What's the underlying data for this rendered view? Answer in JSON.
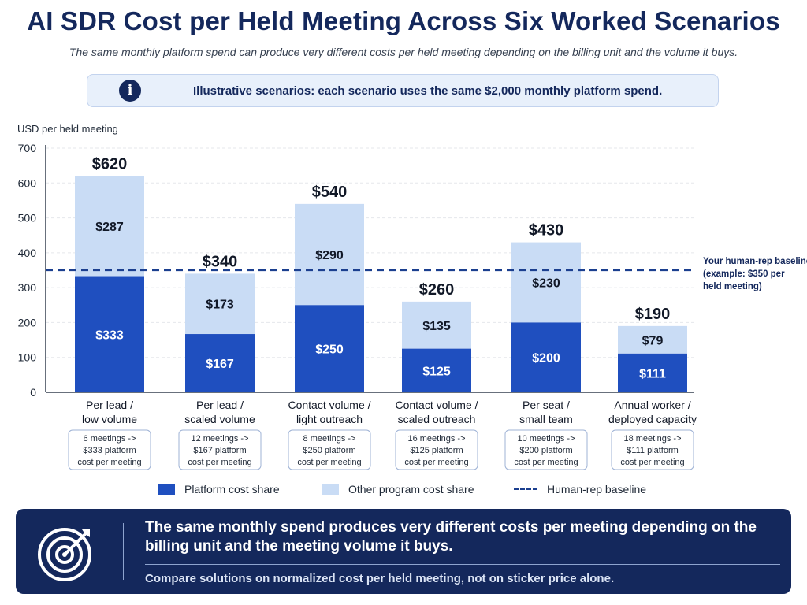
{
  "header": {
    "title": "AI SDR Cost per Held Meeting Across Six Worked Scenarios",
    "subtitle": "The same monthly platform spend can produce very different costs per held meeting depending on the billing unit and the volume it buys."
  },
  "notice": {
    "icon": "info-icon",
    "text": "Illustrative scenarios: each scenario uses the same $2,000 monthly platform spend."
  },
  "chart_data": {
    "type": "bar",
    "stacked": true,
    "ylabel": "USD per held meeting",
    "ylim": [
      0,
      700
    ],
    "yticks": [
      0,
      100,
      200,
      300,
      400,
      500,
      600,
      700
    ],
    "grid": true,
    "categories": [
      [
        "Per lead /",
        "low volume"
      ],
      [
        "Per lead /",
        "scaled volume"
      ],
      [
        "Contact volume /",
        "light outreach"
      ],
      [
        "Contact volume /",
        "scaled outreach"
      ],
      [
        "Per seat /",
        "small team"
      ],
      [
        "Annual worker /",
        "deployed capacity"
      ]
    ],
    "series": [
      {
        "name": "Platform cost share",
        "values": [
          333,
          167,
          250,
          125,
          200,
          111
        ],
        "labels": [
          "$333",
          "$167",
          "$250",
          "$125",
          "$200",
          "$111"
        ],
        "color": "#1f4fbf"
      },
      {
        "name": "Other program cost share",
        "values": [
          287,
          173,
          290,
          135,
          230,
          79
        ],
        "labels": [
          "$287",
          "$173",
          "$290",
          "$135",
          "$230",
          "$79"
        ],
        "color": "#c9dcf5"
      }
    ],
    "totals": [
      620,
      340,
      540,
      260,
      430,
      190
    ],
    "total_labels": [
      "$620",
      "$340",
      "$540",
      "$260",
      "$430",
      "$190"
    ],
    "notes": [
      [
        "6 meetings ->",
        "$333 platform",
        "cost per meeting"
      ],
      [
        "12 meetings ->",
        "$167 platform",
        "cost per meeting"
      ],
      [
        "8 meetings ->",
        "$250 platform",
        "cost per meeting"
      ],
      [
        "16 meetings ->",
        "$125 platform",
        "cost per meeting"
      ],
      [
        "10 meetings ->",
        "$200 platform",
        "cost per meeting"
      ],
      [
        "18 meetings ->",
        "$111 platform",
        "cost per meeting"
      ]
    ],
    "baseline": {
      "value": 350,
      "name": "Human-rep baseline",
      "label": [
        "Your human-rep baseline",
        "(example: $350 per",
        "held meeting)"
      ],
      "color": "#1b3f8f"
    },
    "legend_position": "bottom"
  },
  "legend": {
    "platform": "Platform cost share",
    "other": "Other program cost share",
    "baseline": "Human-rep baseline"
  },
  "banner": {
    "icon": "target-icon",
    "headline": "The same monthly spend produces very different costs per meeting depending on the billing unit and the meeting volume it buys.",
    "note": "Compare solutions on normalized cost per held meeting, not on sticker price alone."
  }
}
